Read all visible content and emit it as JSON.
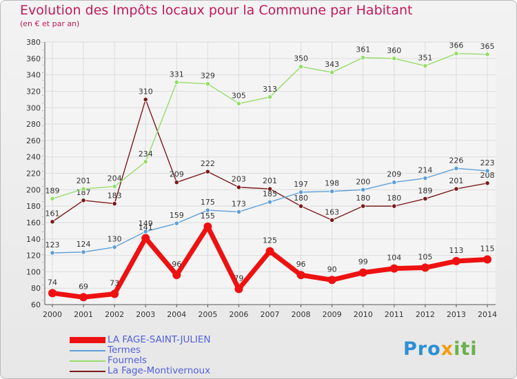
{
  "header": {
    "title": "Evolution des Impôts locaux pour la Commune par Habitant",
    "subtitle": "(en € et par an)"
  },
  "brand": {
    "text_a": "Pro",
    "text_b": "x",
    "text_c": "iti"
  },
  "colors": {
    "la_fage": "#ee1111",
    "termes": "#5e9fd9",
    "fournels": "#95dd6a",
    "montivernoux": "#7b1a1a",
    "grid": "#dcdcdc",
    "axis_text": "#333333",
    "title": "#c2185b",
    "legend_text": "#5060d8"
  },
  "chart_data": {
    "type": "line",
    "title": "Evolution des Impôts locaux pour la Commune par Habitant",
    "subtitle": "(en € et par an)",
    "xlabel": "",
    "ylabel": "",
    "x": [
      "2000",
      "2001",
      "2002",
      "2003",
      "2004",
      "2005",
      "2006",
      "2007",
      "2008",
      "2009",
      "2010",
      "2011",
      "2012",
      "2013",
      "2014"
    ],
    "ylim": [
      60,
      380
    ],
    "yticks": [
      60,
      80,
      100,
      120,
      140,
      160,
      180,
      200,
      220,
      240,
      260,
      280,
      300,
      320,
      340,
      360,
      380
    ],
    "grid": true,
    "legend_position": "bottom-left",
    "series": [
      {
        "name": "La Fage-Montivernoux",
        "key": "montivernoux",
        "values": [
          161,
          187,
          183,
          310,
          209,
          222,
          203,
          201,
          180,
          163,
          180,
          180,
          189,
          201,
          208
        ]
      },
      {
        "name": "Fournels",
        "key": "fournels",
        "values": [
          189,
          201,
          204,
          234,
          331,
          329,
          305,
          313,
          350,
          343,
          361,
          360,
          351,
          366,
          365
        ]
      },
      {
        "name": "Termes",
        "key": "termes",
        "values": [
          123,
          124,
          130,
          149,
          159,
          175,
          173,
          185,
          197,
          198,
          200,
          209,
          214,
          226,
          223
        ]
      },
      {
        "name": "LA FAGE-SAINT-JULIEN",
        "key": "la_fage",
        "values": [
          74,
          69,
          73,
          141,
          96,
          155,
          79,
          125,
          96,
          90,
          99,
          104,
          105,
          113,
          115
        ]
      }
    ],
    "legend": [
      "LA FAGE-SAINT-JULIEN",
      "Termes",
      "Fournels",
      "La Fage-Montivernoux"
    ]
  }
}
